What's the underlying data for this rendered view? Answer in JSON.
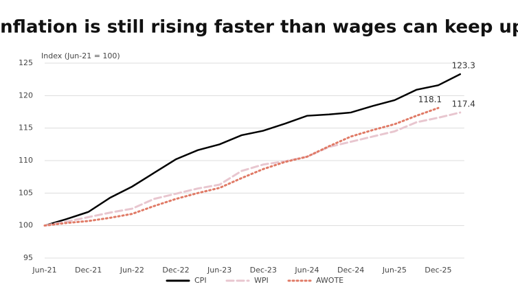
{
  "chart_data": {
    "type": "line",
    "title": "Inflation is still rising faster than wages can keep up",
    "y_label": "Index (Jun-21 = 100)",
    "categories": [
      "Jun-21",
      null,
      "Dec-21",
      null,
      "Jun-22",
      null,
      "Dec-22",
      null,
      "Jun-23",
      null,
      "Dec-23",
      null,
      "Jun-24",
      null,
      "Dec-24",
      null,
      "Jun-25",
      null,
      "Dec-25",
      null
    ],
    "series": [
      {
        "name": "CPI",
        "color": "#000000",
        "style": "solid",
        "values": [
          100,
          101,
          102.1,
          104.3,
          106,
          108.1,
          110.2,
          111.6,
          112.5,
          113.9,
          114.6,
          115.7,
          116.9,
          117.1,
          117.4,
          118.4,
          119.3,
          120.9,
          121.6,
          123.3
        ]
      },
      {
        "name": "WPI",
        "color": "#e8c6cf",
        "style": "dashed",
        "values": [
          100,
          100.6,
          101.3,
          102,
          102.6,
          104.1,
          104.9,
          105.7,
          106.3,
          108.4,
          109.4,
          109.9,
          110.6,
          112.1,
          112.9,
          113.7,
          114.5,
          115.9,
          116.6,
          117.4
        ]
      },
      {
        "name": "AWOTE",
        "color": "#e07a66",
        "style": "dotted",
        "values": [
          100,
          100.4,
          100.7,
          101.2,
          101.8,
          103,
          104.1,
          105,
          105.8,
          107.3,
          108.7,
          109.8,
          110.6,
          112.2,
          113.7,
          114.7,
          115.6,
          116.9,
          118.1,
          null
        ]
      }
    ],
    "ylim": [
      95,
      125
    ],
    "yticks": [
      95,
      100,
      105,
      110,
      115,
      120,
      125
    ],
    "grid": true,
    "legend": "bottom"
  }
}
